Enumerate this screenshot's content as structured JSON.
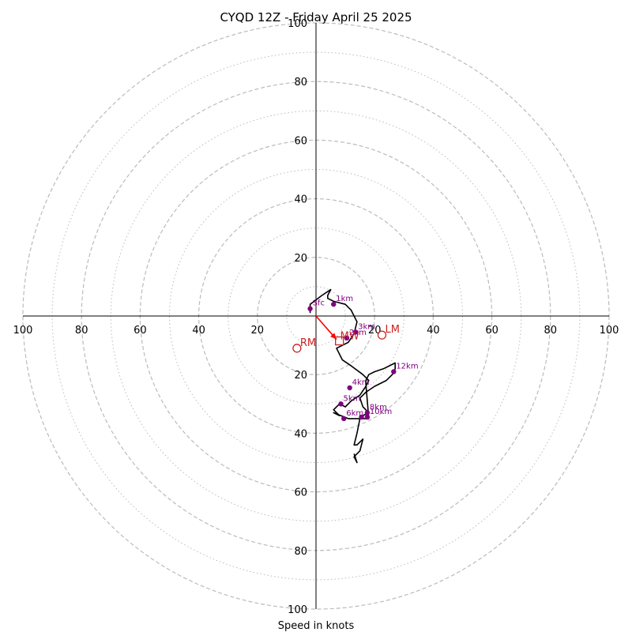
{
  "chart_data": {
    "type": "hodograph",
    "title": "CYQD 12Z - Friday April 25 2025",
    "xlabel": "Speed in knots",
    "ylabel": "",
    "range": 100,
    "ring_major": [
      20,
      40,
      60,
      80,
      100
    ],
    "ring_minor": [
      10,
      30,
      50,
      70,
      90
    ],
    "tick_labels": [
      "20",
      "40",
      "60",
      "80",
      "100"
    ],
    "colors": {
      "grid": "#bbbbbb",
      "trace": "#000000",
      "markers": "#800080",
      "storm_motion": "#cc2222",
      "shear_vector": "#ff0000"
    },
    "hodograph_trace": {
      "u": [
        -2,
        -2,
        2,
        5,
        5,
        4,
        4,
        6,
        10,
        11,
        12,
        13,
        14,
        13,
        11,
        7,
        9,
        12,
        16,
        18,
        17,
        15,
        12,
        10,
        8,
        6,
        8,
        6,
        11,
        15,
        16,
        18,
        16,
        15,
        17,
        20,
        24,
        26,
        27,
        27,
        25,
        23,
        20,
        18,
        17,
        17,
        18,
        15,
        14,
        13,
        14,
        16,
        15,
        13,
        14,
        13
      ],
      "v": [
        1,
        4,
        7,
        9,
        9,
        7,
        6,
        5,
        4,
        3,
        2,
        0,
        -2,
        -6,
        -9,
        -11,
        -15,
        -17,
        -20,
        -22,
        -24,
        -27,
        -29,
        -31,
        -30,
        -32,
        -34,
        -33,
        -35,
        -35,
        -34,
        -33,
        -31,
        -28,
        -26,
        -24,
        -22,
        -20,
        -18,
        -16,
        -17,
        -18,
        -19,
        -20,
        -22,
        -23,
        -35,
        -35,
        -40,
        -44,
        -44,
        -42,
        -46,
        -48,
        -50,
        -47
      ]
    },
    "height_markers": [
      {
        "label": "Sfc",
        "u": -2,
        "v": 2.5
      },
      {
        "label": "1km",
        "u": 6,
        "v": 4
      },
      {
        "label": "2km",
        "u": 10.5,
        "v": -7.5
      },
      {
        "label": "3km",
        "u": 13.5,
        "v": -5.5
      },
      {
        "label": "4km",
        "u": 11.5,
        "v": -24.5
      },
      {
        "label": "5km",
        "u": 8.5,
        "v": -30
      },
      {
        "label": "6km",
        "u": 9.5,
        "v": -35
      },
      {
        "label": "8km",
        "u": 17.5,
        "v": -33
      },
      {
        "label": "10km",
        "u": 17.5,
        "v": -34.5
      },
      {
        "label": "12km",
        "u": 26.5,
        "v": -19
      },
      {
        "label": "",
        "u": 15.5,
        "v": -34.5
      }
    ],
    "storm_motion": {
      "LM": {
        "label": "LM",
        "u": 22.5,
        "v": -6.5
      },
      "RM": {
        "label": "RM",
        "u": -6.5,
        "v": -11
      },
      "MW": {
        "label": "MW",
        "u": 8,
        "v": -8.5
      }
    },
    "shear_vector": {
      "u0": 0,
      "v0": 0,
      "u1": 7,
      "v1": -8
    }
  }
}
